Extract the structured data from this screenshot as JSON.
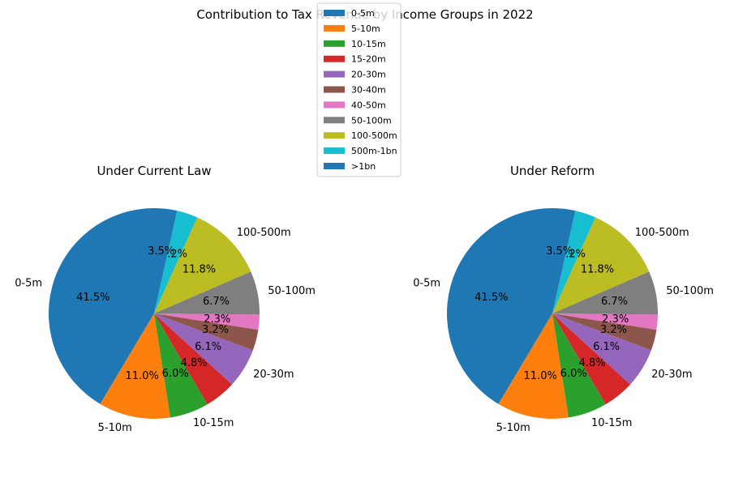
{
  "chart_data": {
    "title": "Contribution to Tax Revenue by Income Groups in 2022",
    "type": "pie",
    "legend": {
      "placement": "top-center",
      "entries": [
        "0-5m",
        "5-10m",
        "10-15m",
        "15-20m",
        "20-30m",
        "30-40m",
        "40-50m",
        "50-100m",
        "100-500m",
        "500m-1bn",
        ">1bn"
      ]
    },
    "colors": [
      "#1f77b4",
      "#ff7f0e",
      "#2ca02c",
      "#d62728",
      "#9467bd",
      "#8c564b",
      "#e377c2",
      "#7f7f7f",
      "#bcbd22",
      "#17becf",
      "#1f77b4"
    ],
    "charts": [
      {
        "title": "Under Current Law",
        "categories": [
          "0-5m",
          "5-10m",
          "10-15m",
          "15-20m",
          "20-30m",
          "30-40m",
          "40-50m",
          "50-100m",
          "100-500m",
          "500m-1bn",
          ">1bn"
        ],
        "slice_labels": [
          "0-5m",
          "5-10m",
          "10-15m",
          "",
          "20-30m",
          "",
          "",
          "50-100m",
          "100-500m",
          "",
          ""
        ],
        "values": [
          41.5,
          11.0,
          6.0,
          4.8,
          6.1,
          3.2,
          2.3,
          6.7,
          11.8,
          3.2,
          3.5
        ],
        "percent_labels": [
          "41.5%",
          "11.0%",
          "6.0%",
          "4.8%",
          "6.1%",
          "3.2%",
          "2.3%",
          "6.7%",
          "11.8%",
          "3.2%",
          "3.5%"
        ]
      },
      {
        "title": "Under Reform",
        "categories": [
          "0-5m",
          "5-10m",
          "10-15m",
          "15-20m",
          "20-30m",
          "30-40m",
          "40-50m",
          "50-100m",
          "100-500m",
          "500m-1bn",
          ">1bn"
        ],
        "slice_labels": [
          "0-5m",
          "5-10m",
          "10-15m",
          "",
          "20-30m",
          "",
          "",
          "50-100m",
          "100-500m",
          "",
          ""
        ],
        "values": [
          41.5,
          11.0,
          6.0,
          4.8,
          6.1,
          3.2,
          2.3,
          6.7,
          11.8,
          3.2,
          3.5
        ],
        "percent_labels": [
          "41.5%",
          "11.0%",
          "6.0%",
          "4.8%",
          "6.1%",
          "3.2%",
          "2.3%",
          "6.7%",
          "11.8%",
          "3.2%",
          "3.5%"
        ]
      }
    ]
  }
}
